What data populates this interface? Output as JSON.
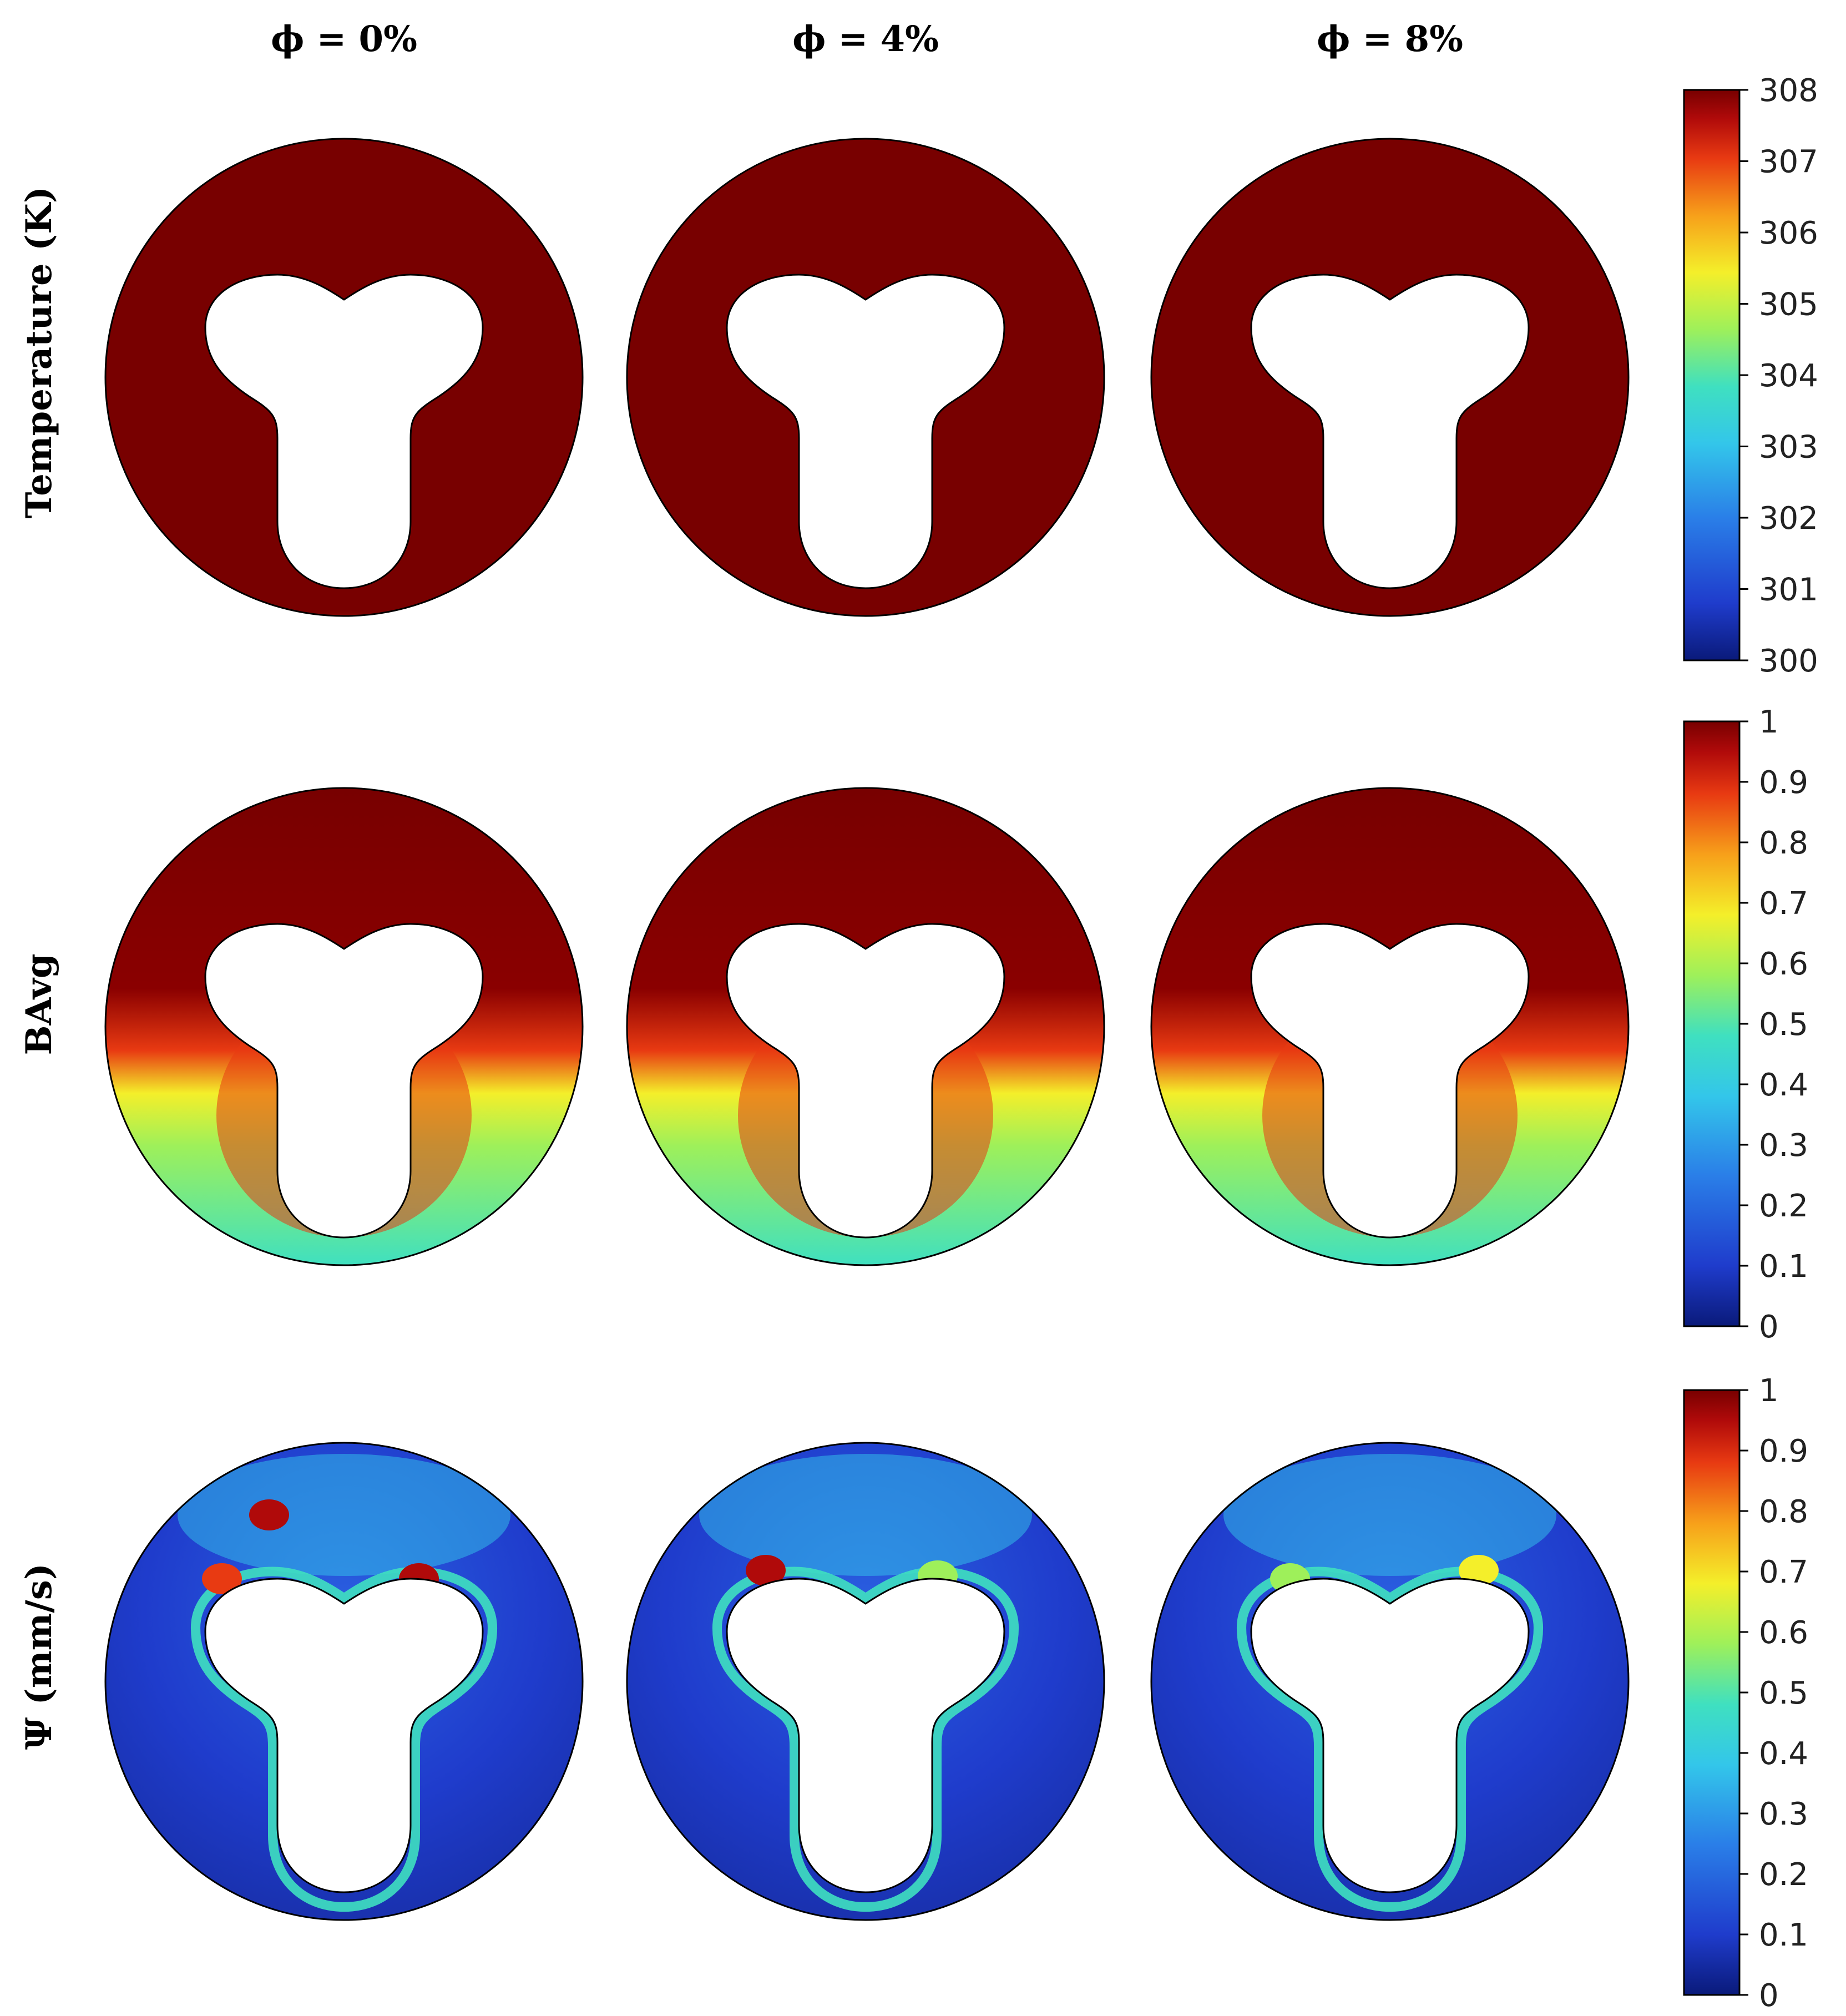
{
  "columns": [
    {
      "label": "ϕ = 0%"
    },
    {
      "label": "ϕ = 4%"
    },
    {
      "label": "ϕ = 8%"
    }
  ],
  "rows": [
    {
      "label": "Temperature (K)",
      "colorbar": {
        "ticks": [
          "308",
          "307",
          "306",
          "305",
          "304",
          "303",
          "302",
          "301",
          "300"
        ],
        "min": 300,
        "max": 308
      }
    },
    {
      "label": "BAvg",
      "colorbar": {
        "ticks": [
          "1",
          "0.9",
          "0.8",
          "0.7",
          "0.6",
          "0.5",
          "0.4",
          "0.3",
          "0.2",
          "0.1",
          "0"
        ],
        "min": 0,
        "max": 1
      }
    },
    {
      "label": "Ψ (mm/s)",
      "colorbar": {
        "ticks": [
          "1",
          "0.9",
          "0.8",
          "0.7",
          "0.6",
          "0.5",
          "0.4",
          "0.3",
          "0.2",
          "0.1",
          "0"
        ],
        "min": 0,
        "max": 1
      }
    }
  ],
  "colormap": [
    "#0a1a7a",
    "#1f3ccc",
    "#2a7fe8",
    "#33c6ea",
    "#3fe0c0",
    "#9ef05a",
    "#f4ef2a",
    "#f7a01a",
    "#e83a12",
    "#b00a0a",
    "#780000"
  ]
}
